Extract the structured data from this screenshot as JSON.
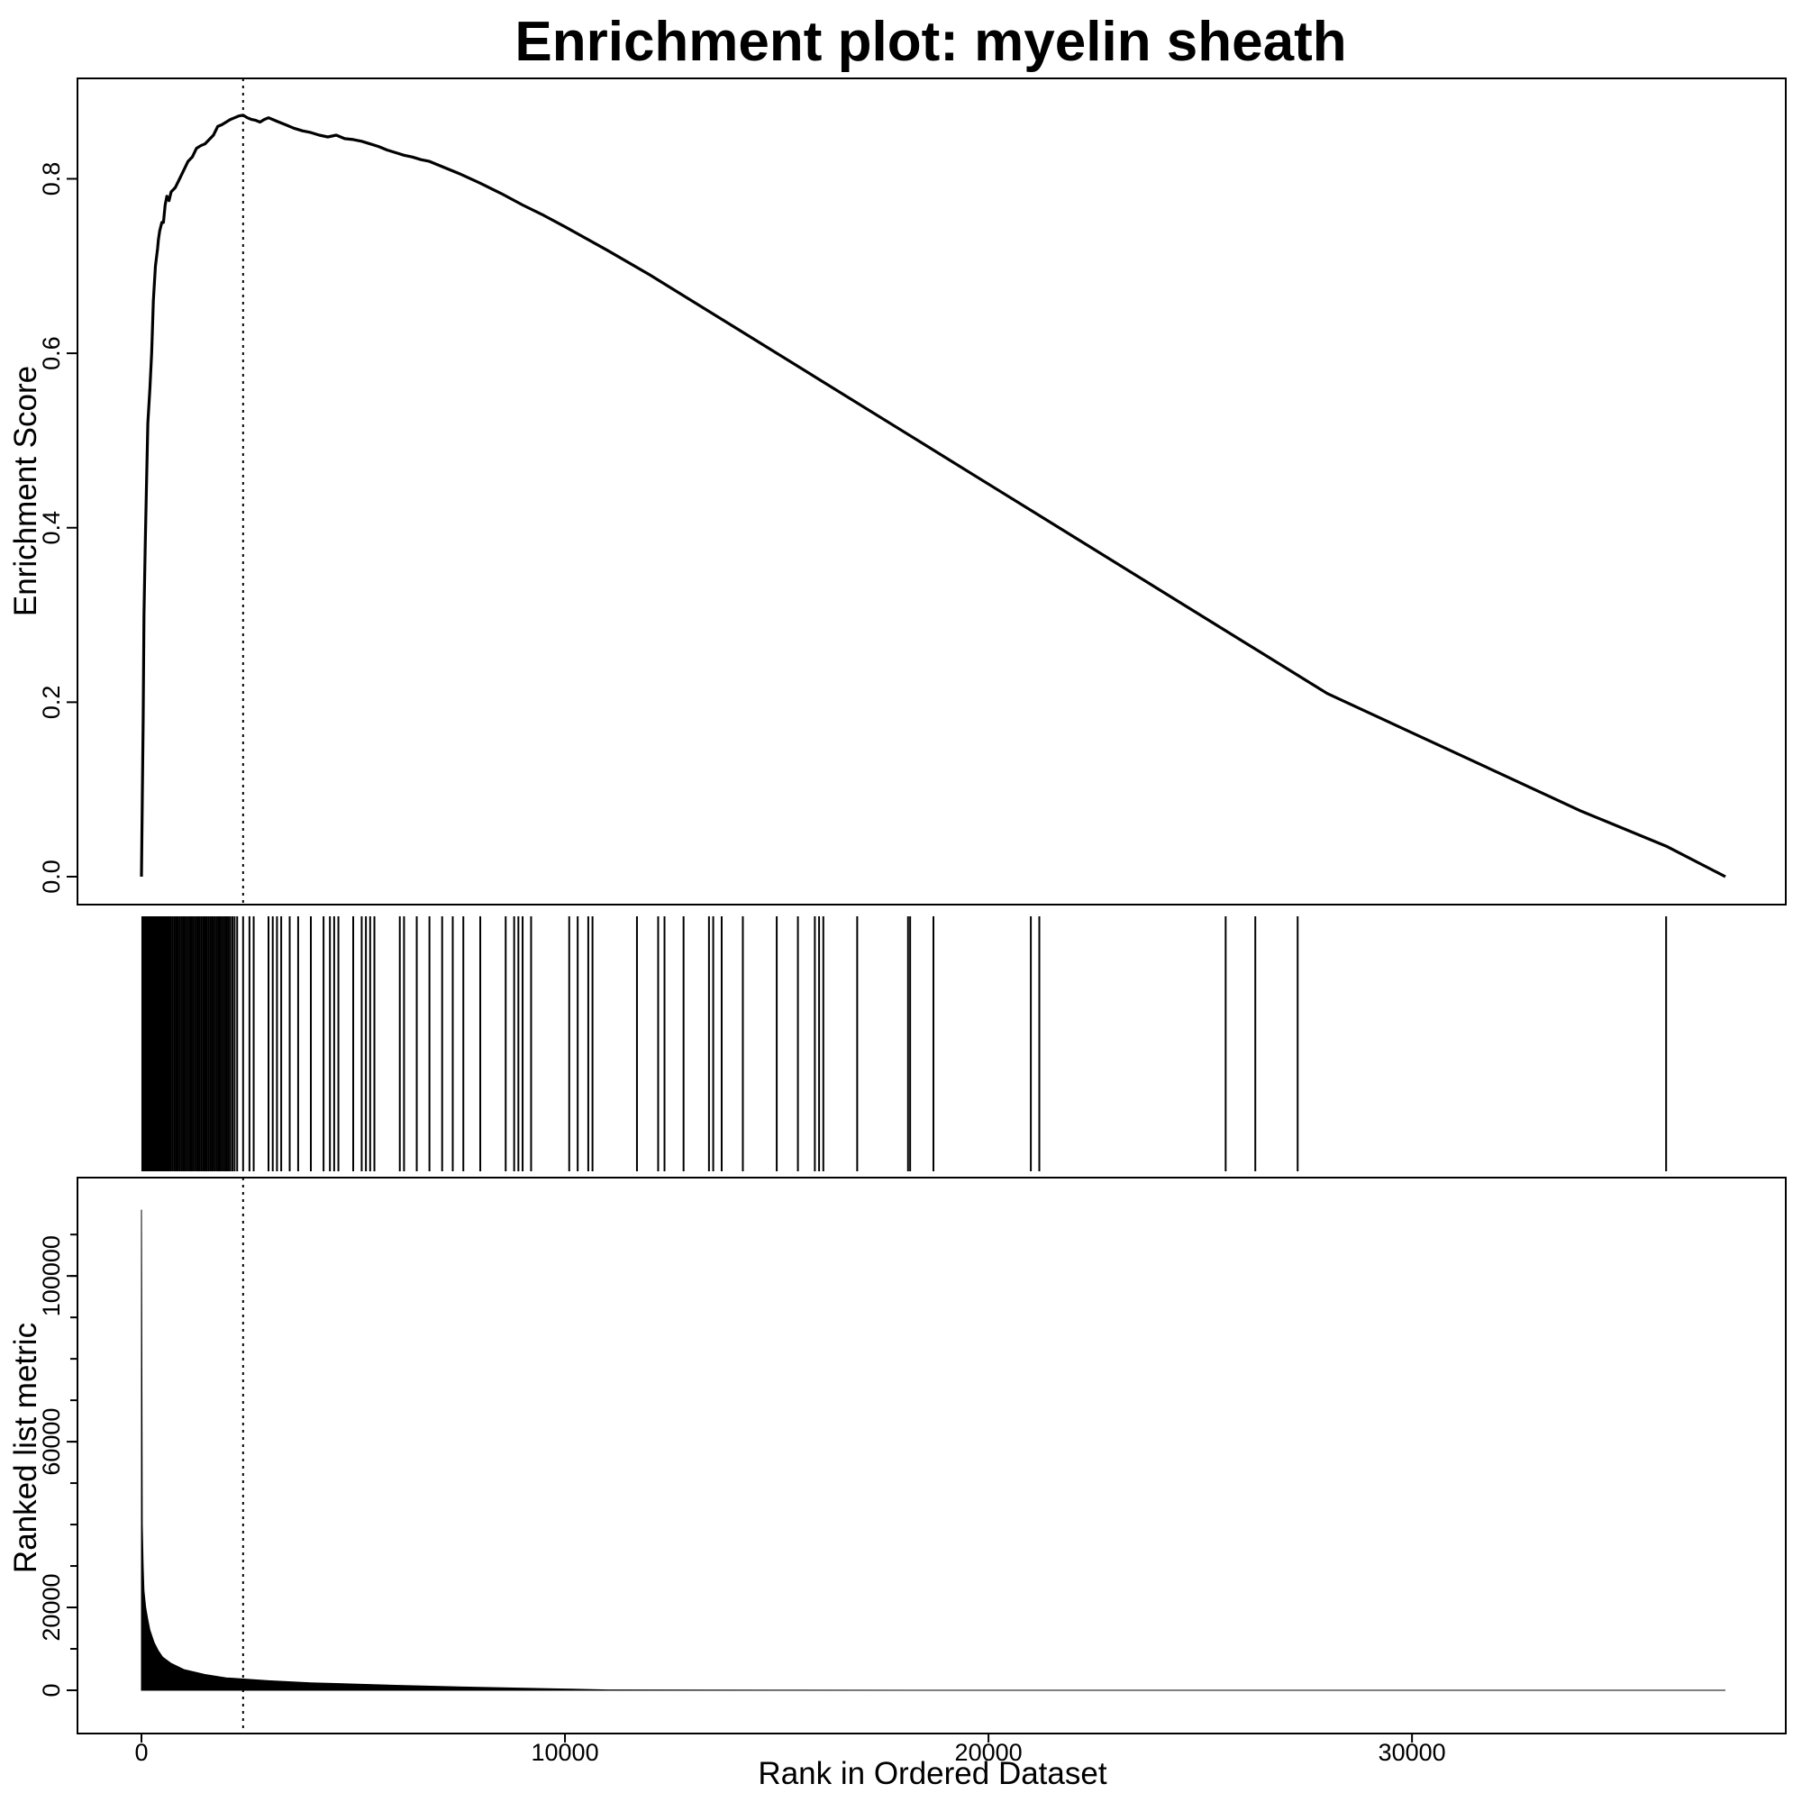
{
  "chart_data": {
    "type": "line",
    "title": "Enrichment plot: myelin sheath",
    "xlabel": "Rank in Ordered Dataset",
    "xlim": [
      0,
      37400
    ],
    "x_ticks": [
      "0",
      "10000",
      "20000",
      "30000"
    ],
    "peak_rank": 2400,
    "panels": {
      "enrichment": {
        "ylabel": "Enrichment Score",
        "ylim": [
          0,
          0.88
        ],
        "y_ticks": [
          "0.0",
          "0.2",
          "0.4",
          "0.6",
          "0.8"
        ],
        "series": [
          {
            "x": [
              0,
              40,
              60,
              90,
              120,
              150,
              200,
              240,
              280,
              330,
              380,
              400,
              430,
              480,
              520,
              560,
              600,
              650,
              700,
              800,
              900,
              1000,
              1100,
              1200,
              1300,
              1400,
              1500,
              1600,
              1700,
              1800,
              1900,
              2000,
              2100,
              2200,
              2300,
              2400,
              2500,
              2600,
              2700,
              2800,
              2900,
              3000,
              3100,
              3200,
              3400,
              3600,
              3800,
              4000,
              4200,
              4400,
              4600,
              4800,
              5000,
              5200,
              5400,
              5600,
              5800,
              6000,
              6200,
              6400,
              6600,
              6800,
              7000,
              7500,
              8000,
              8500,
              9000,
              9500,
              10000,
              11000,
              12000,
              14000,
              16000,
              18000,
              20000,
              22000,
              24000,
              26000,
              28000,
              30000,
              32000,
              34000,
              36000,
              37400
            ],
            "y": [
              0.0,
              0.18,
              0.3,
              0.38,
              0.45,
              0.52,
              0.56,
              0.6,
              0.66,
              0.7,
              0.72,
              0.73,
              0.74,
              0.75,
              0.75,
              0.77,
              0.78,
              0.775,
              0.785,
              0.79,
              0.8,
              0.81,
              0.82,
              0.825,
              0.835,
              0.838,
              0.84,
              0.845,
              0.85,
              0.86,
              0.862,
              0.865,
              0.868,
              0.87,
              0.872,
              0.873,
              0.87,
              0.868,
              0.867,
              0.865,
              0.868,
              0.87,
              0.868,
              0.866,
              0.862,
              0.858,
              0.855,
              0.853,
              0.85,
              0.848,
              0.85,
              0.846,
              0.845,
              0.843,
              0.84,
              0.837,
              0.833,
              0.83,
              0.827,
              0.825,
              0.822,
              0.82,
              0.816,
              0.806,
              0.795,
              0.783,
              0.77,
              0.758,
              0.745,
              0.718,
              0.69,
              0.63,
              0.57,
              0.51,
              0.45,
              0.39,
              0.33,
              0.27,
              0.21,
              0.165,
              0.12,
              0.075,
              0.035,
              0.0
            ]
          }
        ]
      },
      "hits": {
        "ranks": [
          20,
          35,
          50,
          70,
          90,
          110,
          130,
          150,
          175,
          200,
          225,
          250,
          275,
          300,
          330,
          360,
          390,
          420,
          450,
          480,
          510,
          540,
          570,
          600,
          630,
          660,
          700,
          740,
          780,
          820,
          860,
          900,
          940,
          980,
          1020,
          1060,
          1100,
          1140,
          1180,
          1220,
          1260,
          1300,
          1340,
          1380,
          1420,
          1460,
          1500,
          1540,
          1580,
          1620,
          1660,
          1700,
          1740,
          1780,
          1820,
          1860,
          1900,
          1940,
          1980,
          2020,
          2060,
          2100,
          2150,
          2200,
          2260,
          2400,
          2550,
          2650,
          3000,
          3100,
          3200,
          3300,
          3500,
          3700,
          4000,
          4300,
          4450,
          4550,
          4650,
          5000,
          5200,
          5300,
          5400,
          5500,
          6100,
          6200,
          6500,
          6800,
          7100,
          7350,
          7600,
          8000,
          8600,
          8800,
          8900,
          9000,
          9200,
          10100,
          10300,
          10550,
          10650,
          11700,
          12200,
          12350,
          12800,
          13400,
          13500,
          13700,
          14200,
          15000,
          15500,
          15900,
          16000,
          16100,
          16900,
          18100,
          18150,
          18700,
          21000,
          21200,
          25600,
          26300,
          27300,
          36000
        ]
      },
      "metric": {
        "ylabel": "Ranked list metric",
        "ylim": [
          -5000,
          122000
        ],
        "y_ticks": [
          "0",
          "20000",
          "60000",
          "100000"
        ],
        "x": [
          0,
          20,
          40,
          60,
          100,
          150,
          200,
          300,
          400,
          500,
          700,
          1000,
          1500,
          2000,
          3000,
          4000,
          6000,
          8000,
          10000,
          11000,
          15000,
          20000,
          30000,
          37400
        ],
        "y": [
          116000,
          40000,
          30000,
          24000,
          20000,
          17000,
          14500,
          11500,
          9500,
          8000,
          6500,
          5000,
          3800,
          3000,
          2300,
          1800,
          1200,
          700,
          300,
          80,
          30,
          10,
          5,
          0
        ]
      }
    }
  }
}
